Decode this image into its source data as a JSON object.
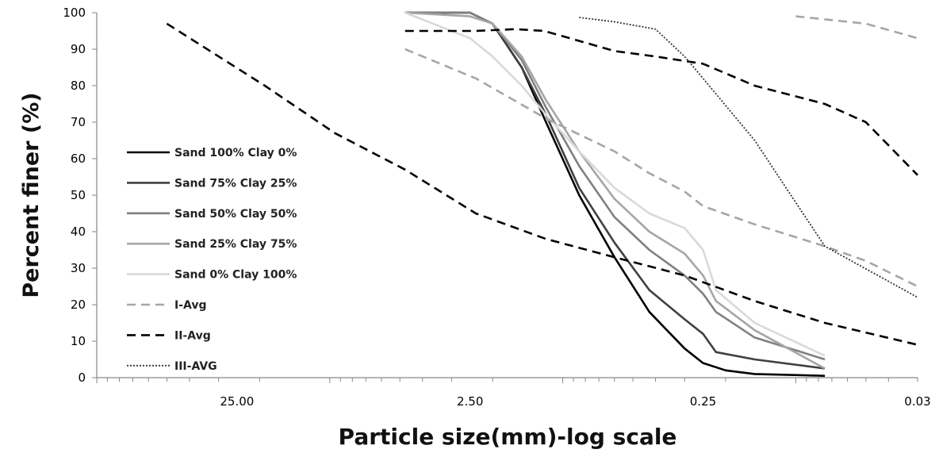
{
  "chart_data": {
    "type": "line",
    "title": "",
    "xlabel": "Particle size(mm)-log scale",
    "ylabel": "Percent finer (%)",
    "x_scale": "log",
    "x_reversed": true,
    "xlim": [
      100,
      0.03
    ],
    "ylim": [
      0,
      100
    ],
    "grid": false,
    "legend_position": "left",
    "x_tick_labels": [
      {
        "value": 25,
        "label": "25.00"
      },
      {
        "value": 2.5,
        "label": "2.50"
      },
      {
        "value": 0.25,
        "label": "0.25"
      },
      {
        "value": 0.03,
        "label": "0.03"
      }
    ],
    "y_ticks": [
      0,
      10,
      20,
      30,
      40,
      50,
      60,
      70,
      80,
      90,
      100
    ],
    "series": [
      {
        "name": "Sand 100% Clay 0%",
        "color": "#000000",
        "style": "solid",
        "points": [
          [
            4.75,
            100
          ],
          [
            2.5,
            100
          ],
          [
            2,
            97
          ],
          [
            1.5,
            85
          ],
          [
            1.18,
            70
          ],
          [
            0.85,
            50
          ],
          [
            0.6,
            33
          ],
          [
            0.425,
            18
          ],
          [
            0.3,
            8
          ],
          [
            0.25,
            4
          ],
          [
            0.2,
            2
          ],
          [
            0.15,
            1
          ],
          [
            0.075,
            0.5
          ]
        ]
      },
      {
        "name": "Sand 75% Clay 25%",
        "color": "#404040",
        "style": "solid",
        "points": [
          [
            4.75,
            100
          ],
          [
            2.5,
            100
          ],
          [
            2,
            97
          ],
          [
            1.5,
            85
          ],
          [
            1.18,
            72
          ],
          [
            0.85,
            52
          ],
          [
            0.6,
            37
          ],
          [
            0.425,
            24
          ],
          [
            0.3,
            16
          ],
          [
            0.25,
            12
          ],
          [
            0.22,
            7
          ],
          [
            0.15,
            5
          ],
          [
            0.075,
            2.5
          ]
        ]
      },
      {
        "name": "Sand 50% Clay 50%",
        "color": "#808080",
        "style": "solid",
        "points": [
          [
            4.75,
            100
          ],
          [
            2.5,
            100
          ],
          [
            2,
            97
          ],
          [
            1.5,
            87
          ],
          [
            1.18,
            74
          ],
          [
            0.85,
            58
          ],
          [
            0.6,
            44
          ],
          [
            0.425,
            35
          ],
          [
            0.3,
            28
          ],
          [
            0.25,
            23
          ],
          [
            0.22,
            18
          ],
          [
            0.15,
            11
          ],
          [
            0.075,
            5
          ]
        ]
      },
      {
        "name": "Sand 25% Clay 75%",
        "color": "#a6a6a6",
        "style": "solid",
        "points": [
          [
            4.75,
            100
          ],
          [
            2.5,
            99
          ],
          [
            2,
            97
          ],
          [
            1.5,
            88
          ],
          [
            1.18,
            76
          ],
          [
            0.85,
            62
          ],
          [
            0.6,
            49
          ],
          [
            0.425,
            40
          ],
          [
            0.3,
            34
          ],
          [
            0.25,
            28
          ],
          [
            0.22,
            21
          ],
          [
            0.15,
            13
          ],
          [
            0.075,
            2.5
          ]
        ]
      },
      {
        "name": "Sand 0% Clay 100%",
        "color": "#d9d9d9",
        "style": "solid",
        "points": [
          [
            4.75,
            100
          ],
          [
            2.5,
            93
          ],
          [
            2,
            88
          ],
          [
            1.5,
            80
          ],
          [
            1.18,
            72
          ],
          [
            0.85,
            62
          ],
          [
            0.6,
            52
          ],
          [
            0.425,
            45
          ],
          [
            0.3,
            41
          ],
          [
            0.25,
            35
          ],
          [
            0.22,
            24
          ],
          [
            0.15,
            15
          ],
          [
            0.075,
            6
          ]
        ]
      },
      {
        "name": "I-Avg",
        "color": "#a6a6a6",
        "style": "dashed",
        "points": [
          [
            4.75,
            90
          ],
          [
            2.36,
            82
          ],
          [
            1.18,
            71
          ],
          [
            0.6,
            62
          ],
          [
            0.425,
            56
          ],
          [
            0.3,
            51
          ],
          [
            0.25,
            47
          ],
          [
            0.15,
            42
          ],
          [
            0.075,
            36
          ],
          [
            0.05,
            32
          ],
          [
            0.03,
            25
          ]
        ]
      },
      {
        "name": "II-Avg",
        "color": "#000000",
        "style": "dashed",
        "points": [
          [
            50,
            97
          ],
          [
            19,
            80
          ],
          [
            9.5,
            67
          ],
          [
            4.75,
            57
          ],
          [
            2.36,
            45
          ],
          [
            1.18,
            38
          ],
          [
            0.6,
            33
          ],
          [
            0.3,
            28
          ],
          [
            0.15,
            21
          ],
          [
            0.075,
            15
          ],
          [
            0.03,
            9
          ]
        ]
      },
      {
        "name": "",
        "color": "#a6a6a6",
        "style": "dashed",
        "points": [
          [
            0.1,
            99
          ],
          [
            0.05,
            97
          ],
          [
            0.03,
            93
          ]
        ]
      },
      {
        "name": "",
        "color": "#000000",
        "style": "dashed",
        "points": [
          [
            4.75,
            95
          ],
          [
            2.36,
            95
          ],
          [
            1.6,
            95.5
          ],
          [
            1.2,
            95
          ],
          [
            0.6,
            89.5
          ],
          [
            0.4,
            88
          ],
          [
            0.25,
            86
          ],
          [
            0.15,
            80
          ],
          [
            0.075,
            75
          ],
          [
            0.05,
            70
          ],
          [
            0.03,
            55.5
          ]
        ]
      },
      {
        "name": "III-AVG",
        "color": "#333333",
        "style": "dotted",
        "points": [
          [
            0.85,
            98.7
          ],
          [
            0.6,
            97.5
          ],
          [
            0.4,
            95.5
          ],
          [
            0.3,
            88
          ],
          [
            0.25,
            82
          ],
          [
            0.15,
            65
          ],
          [
            0.1,
            48
          ],
          [
            0.075,
            36
          ],
          [
            0.03,
            22
          ]
        ]
      }
    ]
  }
}
